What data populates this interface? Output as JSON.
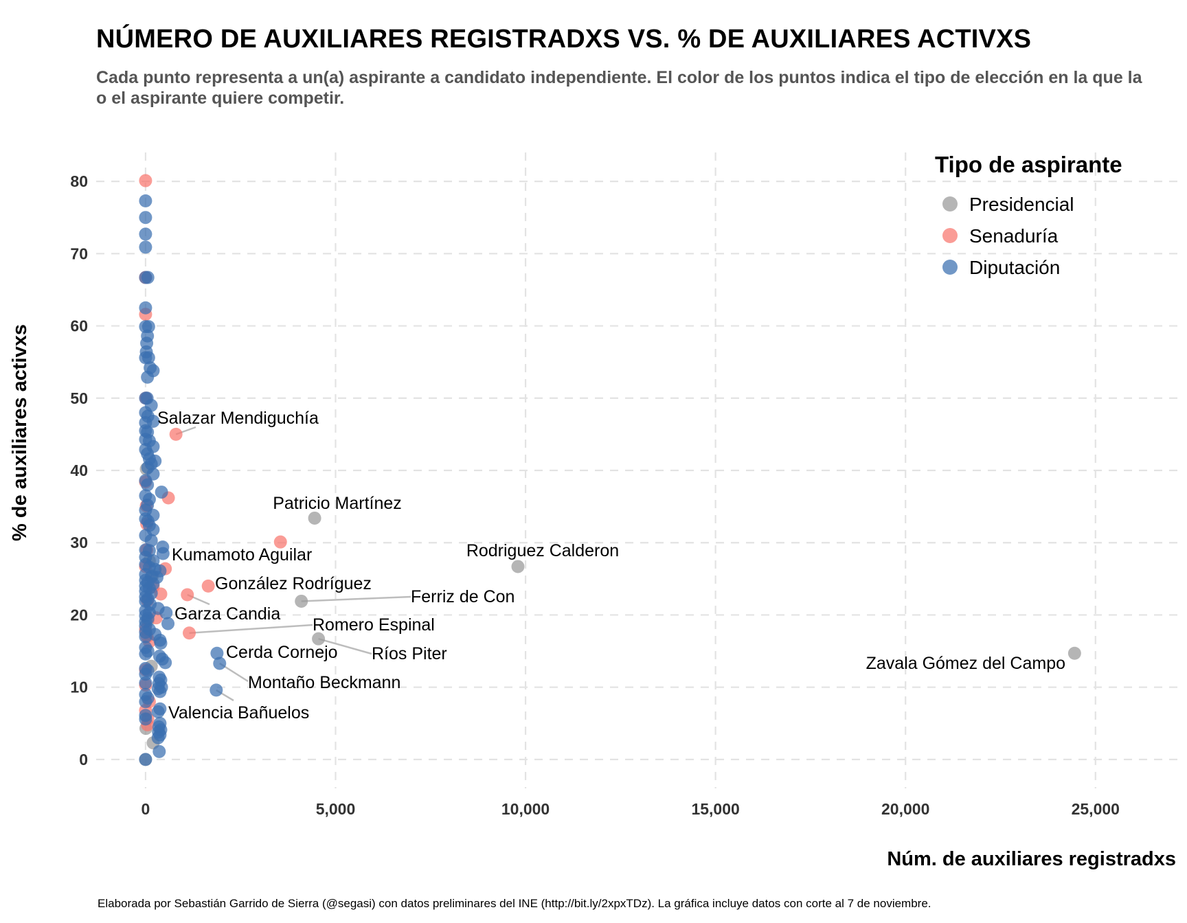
{
  "chart_data": {
    "type": "scatter",
    "title": "NÚMERO DE AUXILIARES REGISTRADXS VS. % DE AUXILIARES ACTIVXS",
    "subtitle": "Cada punto representa a un(a) aspirante a candidato independiente. El color de los puntos indica el tipo de elección en la que la o el aspirante quiere competir.",
    "caption": "Elaborada por Sebastián Garrido de Sierra (@segasi) con datos preliminares del INE (http://bit.ly/2xpxTDz). La gráfica incluye datos con corte al 7 de noviembre.",
    "xlabel": "Núm. de auxiliares registradxs",
    "ylabel": "% de auxiliares activxs",
    "xlim": [
      -1300,
      27300
    ],
    "ylim": [
      -4,
      84
    ],
    "xticks": [
      0,
      5000,
      10000,
      15000,
      20000,
      25000
    ],
    "xtick_labels": [
      "0",
      "5,000",
      "10,000",
      "15,000",
      "20,000",
      "25,000"
    ],
    "yticks": [
      0,
      10,
      20,
      30,
      40,
      50,
      60,
      70,
      80
    ],
    "ytick_labels": [
      "0",
      "10",
      "20",
      "30",
      "40",
      "50",
      "60",
      "70",
      "80"
    ],
    "grid": true,
    "legend": {
      "title": "Tipo de aspirante",
      "placement": "top-right",
      "entries": [
        "Presidencial",
        "Senaduría",
        "Diputación"
      ]
    },
    "series": [
      {
        "name": "Presidencial",
        "color": "#999999",
        "points": [
          [
            24450,
            14.7
          ],
          [
            9800,
            26.7
          ],
          [
            4450,
            33.4
          ],
          [
            4100,
            21.9
          ],
          [
            4550,
            16.7
          ],
          [
            0,
            0
          ],
          [
            10,
            4.3
          ],
          [
            200,
            2.3
          ],
          [
            150,
            12.9
          ],
          [
            180,
            25.4
          ],
          [
            20,
            40.2
          ],
          [
            100,
            27.5
          ],
          [
            60,
            19.2
          ]
        ]
      },
      {
        "name": "Senaduría",
        "color": "#F8766D",
        "points": [
          [
            3550,
            30.1
          ],
          [
            1650,
            24.0
          ],
          [
            1100,
            22.8
          ],
          [
            1150,
            17.5
          ],
          [
            800,
            45.0
          ],
          [
            600,
            36.2
          ],
          [
            520,
            26.4
          ],
          [
            400,
            22.9
          ],
          [
            280,
            19.6
          ],
          [
            200,
            23.9
          ],
          [
            0,
            80.1
          ],
          [
            0,
            61.6
          ],
          [
            0,
            66.7
          ],
          [
            10,
            50.0
          ],
          [
            0,
            38.4
          ],
          [
            20,
            35.1
          ],
          [
            30,
            32.6
          ],
          [
            0,
            26.7
          ],
          [
            50,
            22.0
          ],
          [
            0,
            18.0
          ],
          [
            40,
            17.0
          ],
          [
            100,
            16.3
          ],
          [
            0,
            10.3
          ],
          [
            100,
            8.0
          ],
          [
            0,
            6.8
          ],
          [
            60,
            5.6
          ],
          [
            50,
            4.8
          ],
          [
            0,
            12.4
          ],
          [
            30,
            29.0
          ]
        ]
      },
      {
        "name": "Diputación",
        "color": "#3A6FB0",
        "points": [
          [
            0,
            77.3
          ],
          [
            0,
            75.0
          ],
          [
            0,
            72.7
          ],
          [
            0,
            70.9
          ],
          [
            60,
            66.7
          ],
          [
            0,
            66.7
          ],
          [
            0,
            62.5
          ],
          [
            0,
            59.9
          ],
          [
            80,
            59.9
          ],
          [
            50,
            58.6
          ],
          [
            30,
            57.6
          ],
          [
            20,
            56.4
          ],
          [
            0,
            55.6
          ],
          [
            80,
            55.6
          ],
          [
            120,
            54.2
          ],
          [
            200,
            53.8
          ],
          [
            50,
            52.9
          ],
          [
            0,
            50.0
          ],
          [
            40,
            50.0
          ],
          [
            150,
            49.0
          ],
          [
            0,
            48.0
          ],
          [
            60,
            47.5
          ],
          [
            200,
            46.8
          ],
          [
            0,
            46.6
          ],
          [
            0,
            45.5
          ],
          [
            50,
            45.3
          ],
          [
            0,
            44.3
          ],
          [
            100,
            44.1
          ],
          [
            200,
            43.3
          ],
          [
            0,
            42.9
          ],
          [
            50,
            42.3
          ],
          [
            100,
            41.6
          ],
          [
            250,
            41.3
          ],
          [
            150,
            40.9
          ],
          [
            60,
            40.4
          ],
          [
            200,
            39.5
          ],
          [
            0,
            38.6
          ],
          [
            50,
            38.0
          ],
          [
            420,
            37.0
          ],
          [
            0,
            36.5
          ],
          [
            100,
            36.0
          ],
          [
            50,
            35.2
          ],
          [
            0,
            34.5
          ],
          [
            200,
            33.8
          ],
          [
            0,
            33.3
          ],
          [
            60,
            33.0
          ],
          [
            100,
            32.4
          ],
          [
            200,
            31.8
          ],
          [
            0,
            31.0
          ],
          [
            150,
            30.3
          ],
          [
            450,
            29.4
          ],
          [
            0,
            29.0
          ],
          [
            100,
            28.9
          ],
          [
            460,
            28.5
          ],
          [
            0,
            28.0
          ],
          [
            200,
            27.5
          ],
          [
            0,
            27.0
          ],
          [
            100,
            26.6
          ],
          [
            250,
            26.3
          ],
          [
            380,
            26.1
          ],
          [
            0,
            25.6
          ],
          [
            150,
            25.3
          ],
          [
            300,
            25.2
          ],
          [
            0,
            24.8
          ],
          [
            60,
            24.5
          ],
          [
            200,
            24.3
          ],
          [
            0,
            24.0
          ],
          [
            100,
            23.7
          ],
          [
            0,
            23.3
          ],
          [
            150,
            23.0
          ],
          [
            0,
            22.5
          ],
          [
            60,
            22.2
          ],
          [
            0,
            21.9
          ],
          [
            120,
            21.5
          ],
          [
            330,
            20.9
          ],
          [
            0,
            20.6
          ],
          [
            100,
            20.3
          ],
          [
            540,
            20.3
          ],
          [
            0,
            19.9
          ],
          [
            60,
            19.5
          ],
          [
            0,
            19.1
          ],
          [
            590,
            18.8
          ],
          [
            0,
            18.5
          ],
          [
            100,
            18.0
          ],
          [
            0,
            17.6
          ],
          [
            250,
            17.3
          ],
          [
            0,
            17.0
          ],
          [
            380,
            16.5
          ],
          [
            400,
            16.1
          ],
          [
            0,
            15.5
          ],
          [
            60,
            15.0
          ],
          [
            0,
            14.6
          ],
          [
            1880,
            14.7
          ],
          [
            370,
            14.3
          ],
          [
            440,
            13.9
          ],
          [
            520,
            13.4
          ],
          [
            1950,
            13.3
          ],
          [
            0,
            12.6
          ],
          [
            60,
            12.3
          ],
          [
            0,
            11.8
          ],
          [
            360,
            11.4
          ],
          [
            400,
            11.0
          ],
          [
            0,
            10.6
          ],
          [
            350,
            10.5
          ],
          [
            420,
            10.0
          ],
          [
            330,
            9.8
          ],
          [
            380,
            9.4
          ],
          [
            1860,
            9.6
          ],
          [
            0,
            9.0
          ],
          [
            60,
            8.5
          ],
          [
            0,
            8.0
          ],
          [
            380,
            7.0
          ],
          [
            330,
            6.6
          ],
          [
            0,
            6.1
          ],
          [
            0,
            5.6
          ],
          [
            380,
            5.0
          ],
          [
            350,
            4.5
          ],
          [
            400,
            4.1
          ],
          [
            340,
            3.8
          ],
          [
            380,
            3.4
          ],
          [
            330,
            3.0
          ],
          [
            360,
            1.1
          ],
          [
            0,
            0
          ]
        ]
      }
    ],
    "annotations": [
      {
        "label": "Zavala Gómez del Campo",
        "x": 24450,
        "y": 14.7
      },
      {
        "label": "Rodriguez Calderon",
        "x": 9800,
        "y": 26.7
      },
      {
        "label": "Patricio Martínez",
        "x": 4450,
        "y": 33.4
      },
      {
        "label": "Ferriz de Con",
        "x": 4100,
        "y": 21.9
      },
      {
        "label": "Ríos Piter",
        "x": 4550,
        "y": 16.7
      },
      {
        "label": "Romero Espinal",
        "x": 1150,
        "y": 17.5
      },
      {
        "label": "Salazar Mendiguchía",
        "x": 800,
        "y": 45.0
      },
      {
        "label": "Kumamoto Aguilar",
        "x": 520,
        "y": 26.4
      },
      {
        "label": "González Rodríguez",
        "x": 1650,
        "y": 24.0
      },
      {
        "label": "Garza Candia",
        "x": 1100,
        "y": 22.8
      },
      {
        "label": "Cerda Cornejo",
        "x": 1880,
        "y": 14.7
      },
      {
        "label": "Montaño Beckmann",
        "x": 1950,
        "y": 13.3
      },
      {
        "label": "Valencia Bañuelos",
        "x": 1860,
        "y": 9.6
      }
    ]
  }
}
